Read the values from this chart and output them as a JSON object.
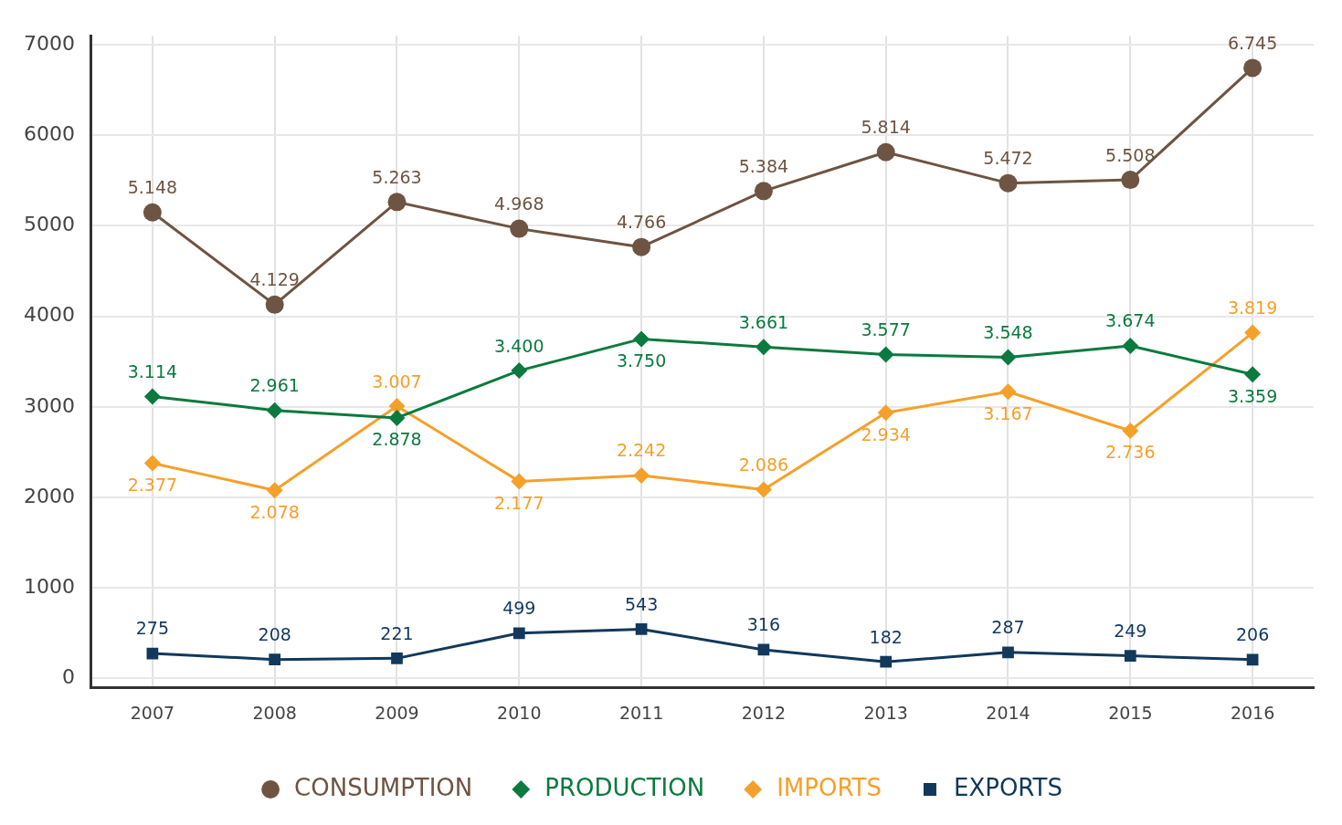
{
  "chart_data": {
    "type": "line",
    "categories": [
      "2007",
      "2008",
      "2009",
      "2010",
      "2011",
      "2012",
      "2013",
      "2014",
      "2015",
      "2016"
    ],
    "series": [
      {
        "name": "CONSUMPTION",
        "color": "#6e5443",
        "marker": "circle",
        "values": [
          5148,
          4129,
          5263,
          4968,
          4766,
          5384,
          5814,
          5472,
          5508,
          6745
        ],
        "value_labels": [
          "5.148",
          "4.129",
          "5.263",
          "4.968",
          "4.766",
          "5.384",
          "5.814",
          "5.472",
          "5.508",
          "6.745"
        ]
      },
      {
        "name": "PRODUCTION",
        "color": "#0a7a3e",
        "marker": "diamond",
        "values": [
          3114,
          2961,
          2878,
          3400,
          3750,
          3661,
          3577,
          3548,
          3674,
          3359
        ],
        "value_labels": [
          "3.114",
          "2.961",
          "2.878",
          "3.400",
          "3.750",
          "3.661",
          "3.577",
          "3.548",
          "3.674",
          "3.359"
        ]
      },
      {
        "name": "IMPORTS",
        "color": "#f5a02a",
        "marker": "diamond",
        "values": [
          2377,
          2078,
          3007,
          2177,
          2242,
          2086,
          2934,
          3167,
          2736,
          3819
        ],
        "value_labels": [
          "2.377",
          "2.078",
          "3.007",
          "2.177",
          "2.242",
          "2.086",
          "2.934",
          "3.167",
          "2.736",
          "3.819"
        ]
      },
      {
        "name": "EXPORTS",
        "color": "#12385c",
        "marker": "square",
        "values": [
          275,
          208,
          221,
          499,
          543,
          316,
          182,
          287,
          249,
          206
        ],
        "value_labels": [
          "275",
          "208",
          "221",
          "499",
          "543",
          "316",
          "182",
          "287",
          "249",
          "206"
        ]
      }
    ],
    "ylim": [
      -100,
      7100
    ],
    "yticks": [
      0,
      1000,
      2000,
      3000,
      4000,
      5000,
      6000,
      7000
    ],
    "grid": true,
    "legend": "bottom"
  }
}
